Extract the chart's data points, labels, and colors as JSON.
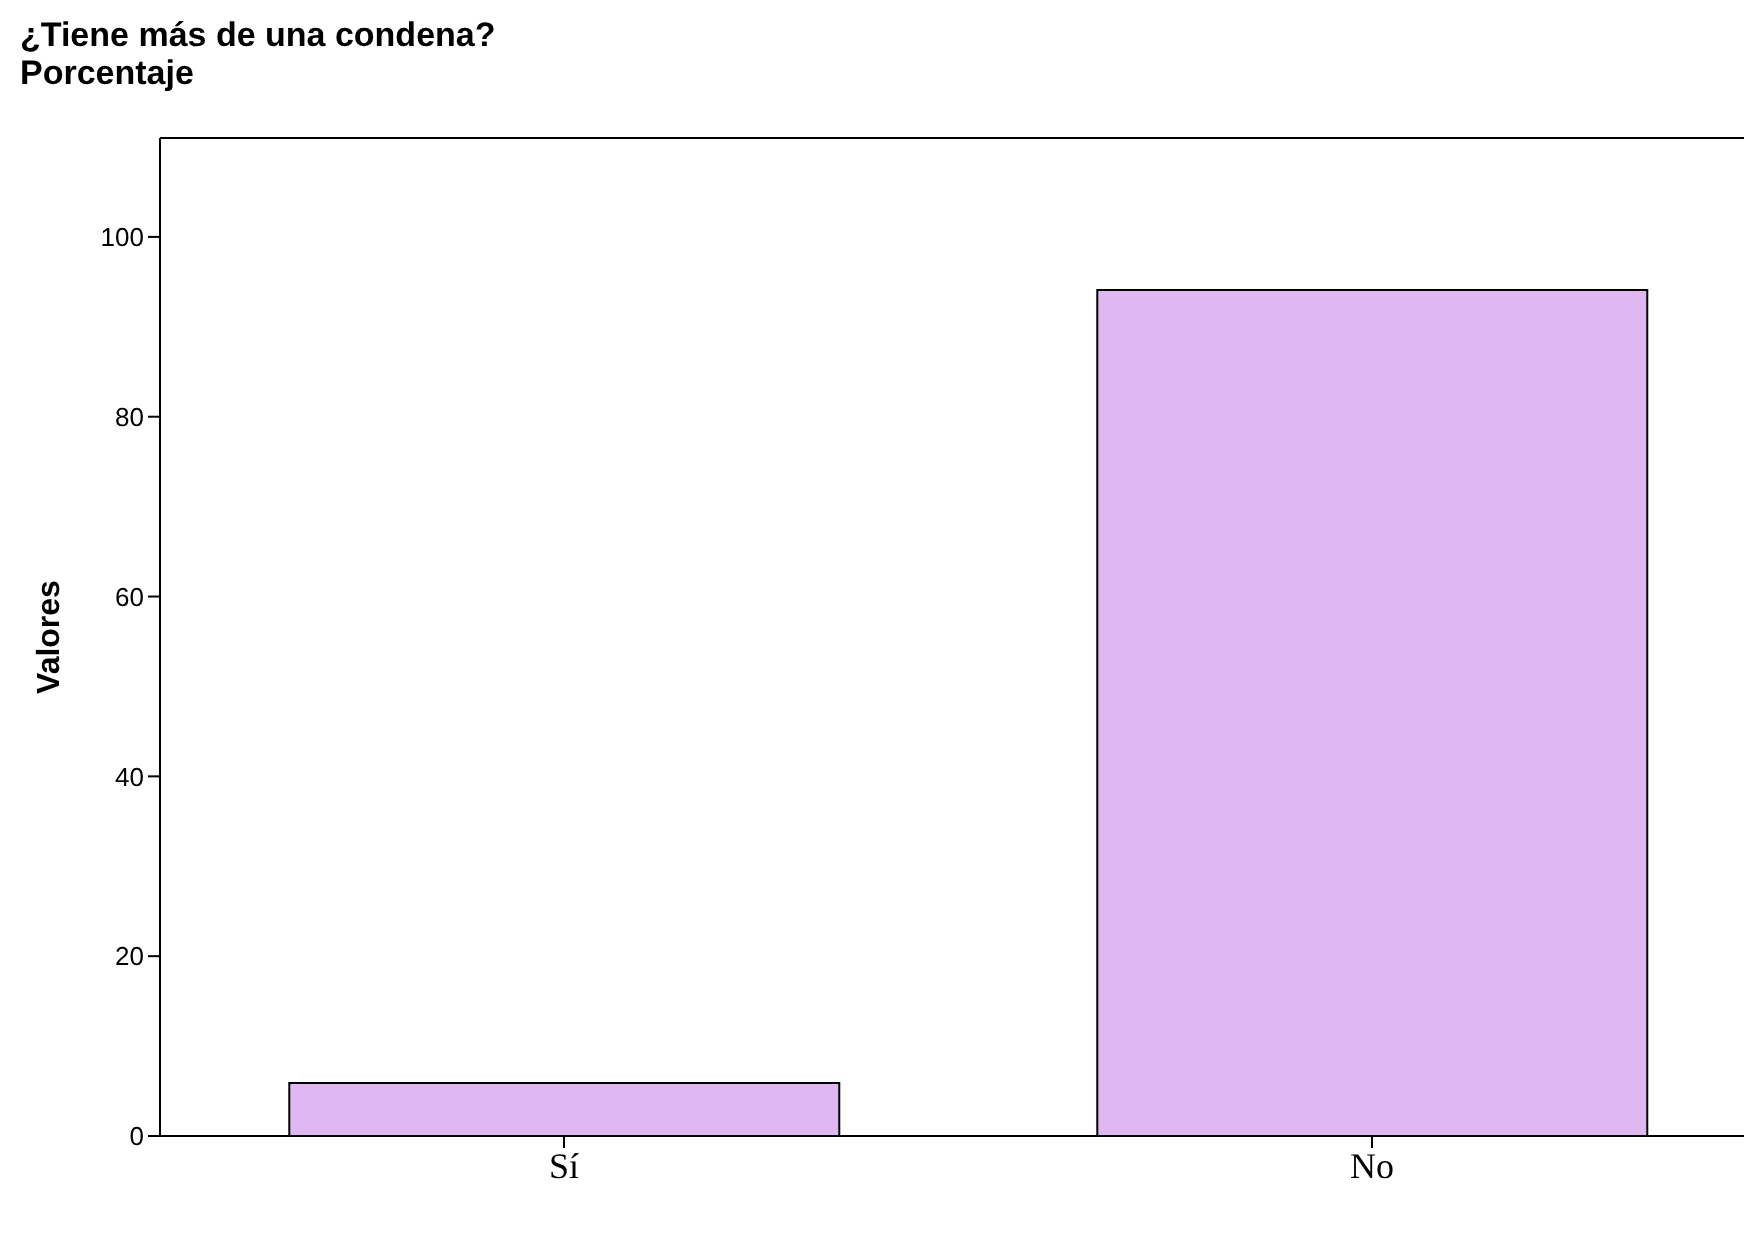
{
  "chart_data": {
    "type": "bar",
    "title": "¿Tiene más de una condena?",
    "subtitle": "Porcentaje",
    "ylabel": "Valores",
    "categories": [
      "Sí",
      "No"
    ],
    "values": [
      5.9,
      94.1
    ],
    "color": "#dfb8f2",
    "ylim": [
      0,
      111
    ],
    "yticks": [
      0,
      20,
      40,
      60,
      80,
      100
    ],
    "grid": false,
    "legend": false
  }
}
